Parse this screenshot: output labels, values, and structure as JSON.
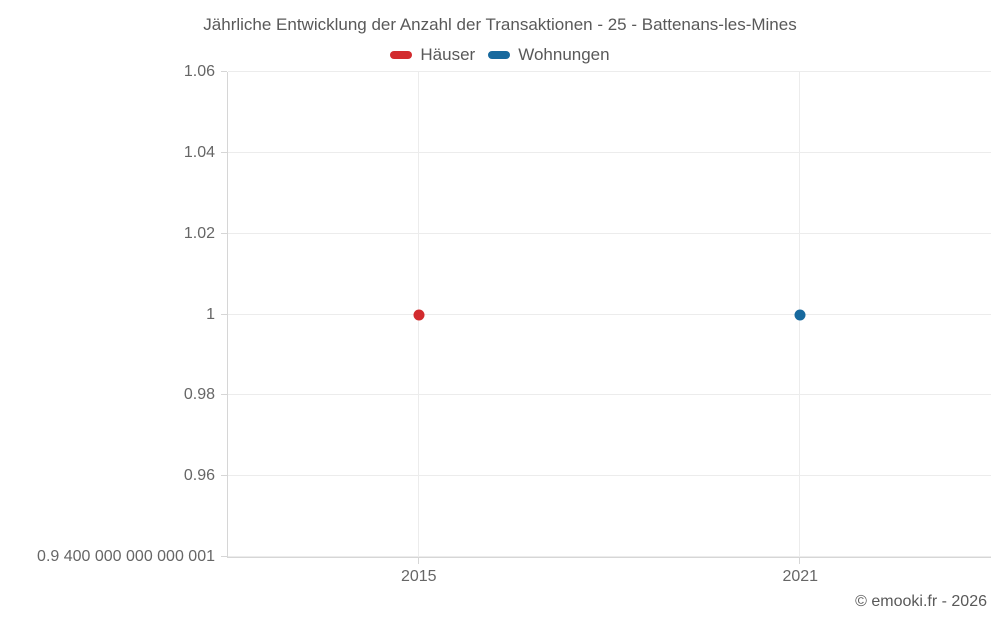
{
  "title": "Jährliche Entwicklung der Anzahl der Transaktionen - 25 - Battenans-les-Mines",
  "watermark": "© emooki.fr - 2026",
  "colors": {
    "haeuser": "#d22b2e",
    "wohnungen": "#17699e",
    "grid": "#ececec",
    "axis": "#d6d6d6",
    "text": "#595959"
  },
  "chart_data": {
    "type": "scatter",
    "title": "Jährliche Entwicklung der Anzahl der Transaktionen - 25 - Battenans-les-Mines",
    "legend_position": "top",
    "grid": true,
    "x_range": [
      2012,
      2024
    ],
    "y_range": [
      0.94,
      1.06
    ],
    "x_ticks": [
      {
        "value": 2015,
        "label": "2015"
      },
      {
        "value": 2021,
        "label": "2021"
      }
    ],
    "y_ticks": [
      {
        "value": 1.06,
        "label": "1.06"
      },
      {
        "value": 1.04,
        "label": "1.04"
      },
      {
        "value": 1.02,
        "label": "1.02"
      },
      {
        "value": 1.0,
        "label": "1"
      },
      {
        "value": 0.98,
        "label": "0.98"
      },
      {
        "value": 0.96,
        "label": "0.96"
      },
      {
        "value": 0.94,
        "label": "0.9 400 000 000 000 001"
      }
    ],
    "series": [
      {
        "name": "Häuser",
        "color": "#d22b2e",
        "points": [
          {
            "x": 2015,
            "y": 1
          }
        ]
      },
      {
        "name": "Wohnungen",
        "color": "#17699e",
        "points": [
          {
            "x": 2021,
            "y": 1
          }
        ]
      }
    ]
  }
}
